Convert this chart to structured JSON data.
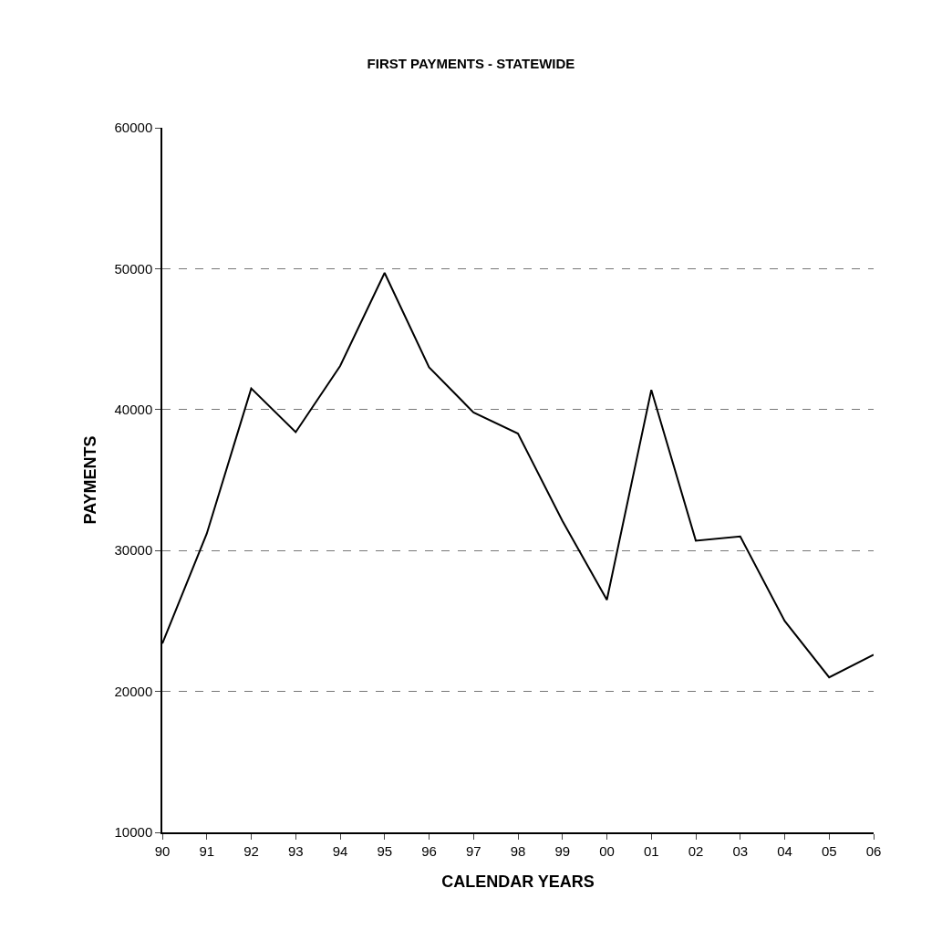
{
  "chart_data": {
    "type": "line",
    "title": "FIRST PAYMENTS - STATEWIDE",
    "xlabel": "CALENDAR YEARS",
    "ylabel": "PAYMENTS",
    "categories": [
      "90",
      "91",
      "92",
      "93",
      "94",
      "95",
      "96",
      "97",
      "98",
      "99",
      "00",
      "01",
      "02",
      "03",
      "04",
      "05",
      "06"
    ],
    "series": [
      {
        "color": "#000000",
        "values": [
          23400,
          31200,
          41500,
          38400,
          43100,
          49700,
          43000,
          39800,
          38300,
          32100,
          26500,
          41400,
          30700,
          31000,
          25000,
          21000,
          22600
        ]
      }
    ],
    "ylim": [
      10000,
      60000
    ],
    "yticks": [
      10000,
      20000,
      30000,
      40000,
      50000,
      60000
    ],
    "grid": "y",
    "marker": "none",
    "line_style": "solid"
  }
}
